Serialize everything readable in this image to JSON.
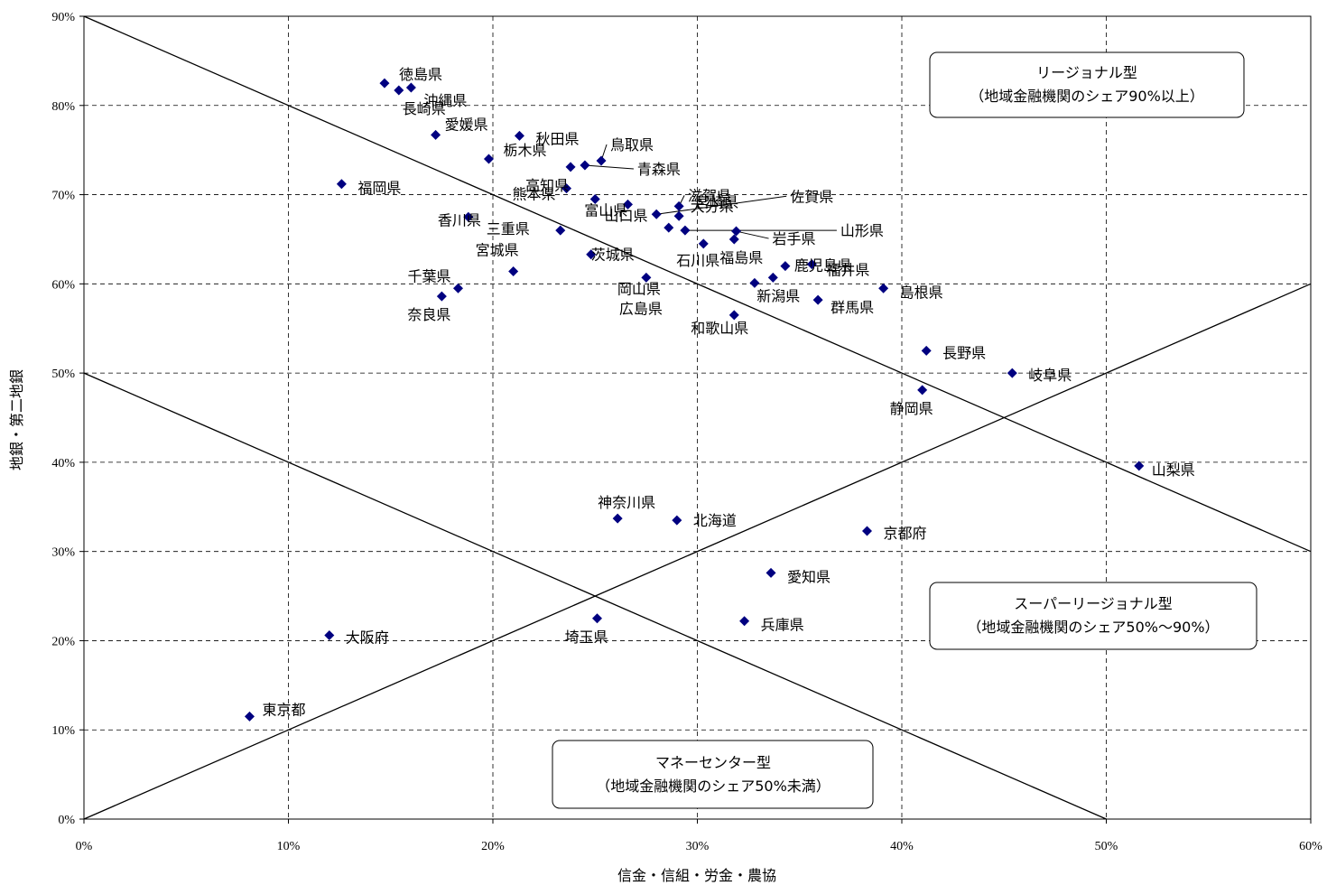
{
  "chart_data": {
    "type": "scatter",
    "xlabel": "信金・信組・労金・農協",
    "ylabel": "地銀・第二地銀",
    "xlim": [
      0,
      60
    ],
    "ylim": [
      0,
      90
    ],
    "x_ticks": [
      "0%",
      "10%",
      "20%",
      "30%",
      "40%",
      "50%",
      "60%"
    ],
    "y_ticks": [
      "0%",
      "10%",
      "20%",
      "30%",
      "40%",
      "50%",
      "60%",
      "70%",
      "80%",
      "90%"
    ],
    "grid": true,
    "marker_color": "#000080",
    "points": [
      {
        "name": "徳島県",
        "x": 14.7,
        "y": 82.5
      },
      {
        "name": "長崎県",
        "x": 15.4,
        "y": 81.7
      },
      {
        "name": "沖縄県",
        "x": 16.0,
        "y": 82.0
      },
      {
        "name": "愛媛県",
        "x": 17.2,
        "y": 76.7
      },
      {
        "name": "秋田県",
        "x": 21.3,
        "y": 76.6
      },
      {
        "name": "栃木県",
        "x": 19.8,
        "y": 74.0
      },
      {
        "name": "鳥取県",
        "x": 25.3,
        "y": 73.8
      },
      {
        "name": "高知県",
        "x": 23.8,
        "y": 73.1
      },
      {
        "name": "青森県",
        "x": 24.5,
        "y": 73.3
      },
      {
        "name": "福岡県",
        "x": 12.6,
        "y": 71.2
      },
      {
        "name": "熊本県",
        "x": 23.6,
        "y": 70.7
      },
      {
        "name": "富山県",
        "x": 25.0,
        "y": 69.5
      },
      {
        "name": "滋賀県",
        "x": 29.1,
        "y": 68.7
      },
      {
        "name": "宮崎県",
        "x": 29.1,
        "y": 67.6
      },
      {
        "name": "山口県",
        "x": 26.6,
        "y": 68.9
      },
      {
        "name": "香川県",
        "x": 18.8,
        "y": 67.5
      },
      {
        "name": "佐賀県",
        "x": 28.0,
        "y": 67.8
      },
      {
        "name": "大分県",
        "x": 28.6,
        "y": 66.3
      },
      {
        "name": "山形県",
        "x": 29.4,
        "y": 66.0
      },
      {
        "name": "三重県",
        "x": 23.3,
        "y": 66.0
      },
      {
        "name": "茨城県",
        "x": 24.8,
        "y": 63.3
      },
      {
        "name": "石川県",
        "x": 30.3,
        "y": 64.5
      },
      {
        "name": "岩手県",
        "x": 31.9,
        "y": 65.9
      },
      {
        "name": "福島県",
        "x": 31.8,
        "y": 65.0
      },
      {
        "name": "福井県",
        "x": 35.6,
        "y": 62.2
      },
      {
        "name": "鹿児島県",
        "x": 34.3,
        "y": 62.0
      },
      {
        "name": "宮城県",
        "x": 21.0,
        "y": 61.4
      },
      {
        "name": "岡山県",
        "x": 27.5,
        "y": 60.7
      },
      {
        "name": "新潟県",
        "x": 33.7,
        "y": 60.7
      },
      {
        "name": "千葉県",
        "x": 18.3,
        "y": 59.5
      },
      {
        "name": "広島県",
        "x": 32.8,
        "y": 60.1
      },
      {
        "name": "島根県",
        "x": 39.1,
        "y": 59.5
      },
      {
        "name": "群馬県",
        "x": 35.9,
        "y": 58.2
      },
      {
        "name": "奈良県",
        "x": 17.5,
        "y": 58.6
      },
      {
        "name": "和歌山県",
        "x": 31.8,
        "y": 56.5
      },
      {
        "name": "長野県",
        "x": 41.2,
        "y": 52.5
      },
      {
        "name": "岐阜県",
        "x": 45.4,
        "y": 50.0
      },
      {
        "name": "静岡県",
        "x": 41.0,
        "y": 48.1
      },
      {
        "name": "山梨県",
        "x": 51.6,
        "y": 39.6
      },
      {
        "name": "神奈川県",
        "x": 26.1,
        "y": 33.7
      },
      {
        "name": "北海道",
        "x": 29.0,
        "y": 33.5
      },
      {
        "name": "京都府",
        "x": 38.3,
        "y": 32.3
      },
      {
        "name": "愛知県",
        "x": 33.6,
        "y": 27.6
      },
      {
        "name": "埼玉県",
        "x": 25.1,
        "y": 22.5
      },
      {
        "name": "兵庫県",
        "x": 32.3,
        "y": 22.2
      },
      {
        "name": "大阪府",
        "x": 12.0,
        "y": 20.6
      },
      {
        "name": "東京都",
        "x": 8.1,
        "y": 11.5
      }
    ],
    "boundary_lines": [
      {
        "x1": 0,
        "y1": 90,
        "x2": 60,
        "y2": 30
      },
      {
        "x1": 0,
        "y1": 50,
        "x2": 50,
        "y2": 0
      },
      {
        "x1": 0,
        "y1": 0,
        "x2": 60,
        "y2": 60
      }
    ],
    "annotations": [
      {
        "line1": "リージョナル型",
        "line2": "（地域金融機関のシェア90%以上）"
      },
      {
        "line1": "スーパーリージョナル型",
        "line2": "（地域金融機関のシェア50%〜90%）"
      },
      {
        "line1": "マネーセンター型",
        "line2": "（地域金融機関のシェア50%未満）"
      }
    ]
  }
}
